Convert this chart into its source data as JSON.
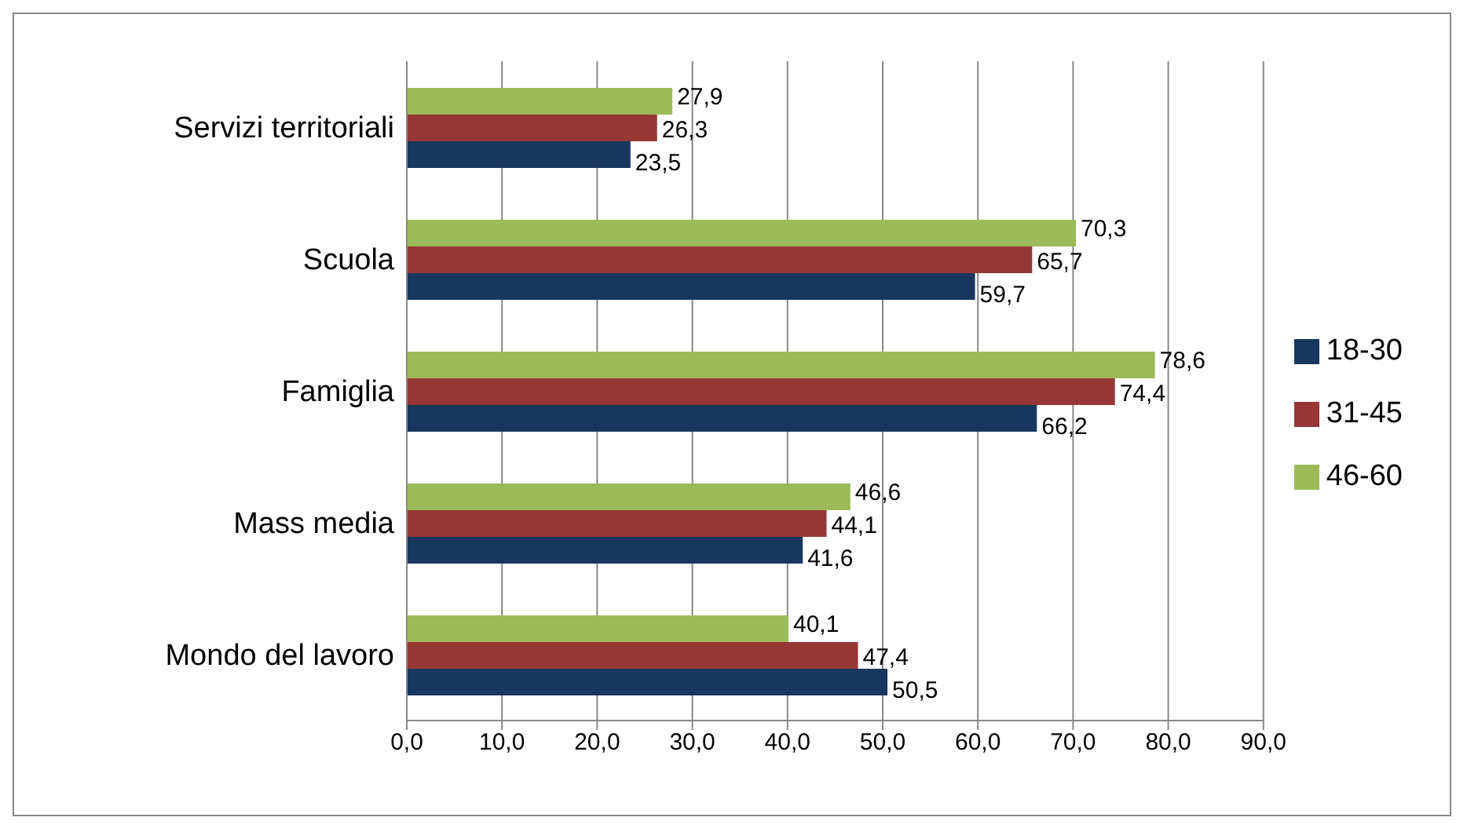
{
  "chart_data": {
    "type": "bar",
    "orientation": "horizontal",
    "categories": [
      "Servizi territoriali",
      "Scuola",
      "Famiglia",
      "Mass media",
      "Mondo del lavoro"
    ],
    "series": [
      {
        "name": "46-60",
        "color": "#9bbb59",
        "values": [
          27.9,
          70.3,
          78.6,
          46.6,
          40.1
        ],
        "value_labels": [
          "27,9",
          "70,3",
          "78,6",
          "46,6",
          "40,1"
        ]
      },
      {
        "name": "31-45",
        "color": "#953735",
        "values": [
          26.3,
          65.7,
          74.4,
          44.1,
          47.4
        ],
        "value_labels": [
          "26,3",
          "65,7",
          "74,4",
          "44,1",
          "47,4"
        ]
      },
      {
        "name": "18-30",
        "color": "#17375e",
        "values": [
          23.5,
          59.7,
          66.2,
          41.6,
          50.5
        ],
        "value_labels": [
          "23,5",
          "59,7",
          "66,2",
          "41,6",
          "50,5"
        ]
      }
    ],
    "xlim": [
      0,
      90
    ],
    "xticks": [
      {
        "value": 0,
        "label": "0,0"
      },
      {
        "value": 10,
        "label": "10,0"
      },
      {
        "value": 20,
        "label": "20,0"
      },
      {
        "value": 30,
        "label": "30,0"
      },
      {
        "value": 40,
        "label": "40,0"
      },
      {
        "value": 50,
        "label": "50,0"
      },
      {
        "value": 60,
        "label": "60,0"
      },
      {
        "value": 70,
        "label": "70,0"
      },
      {
        "value": 80,
        "label": "80,0"
      },
      {
        "value": 90,
        "label": "90,0"
      }
    ],
    "grid": "x",
    "legend": "right"
  }
}
